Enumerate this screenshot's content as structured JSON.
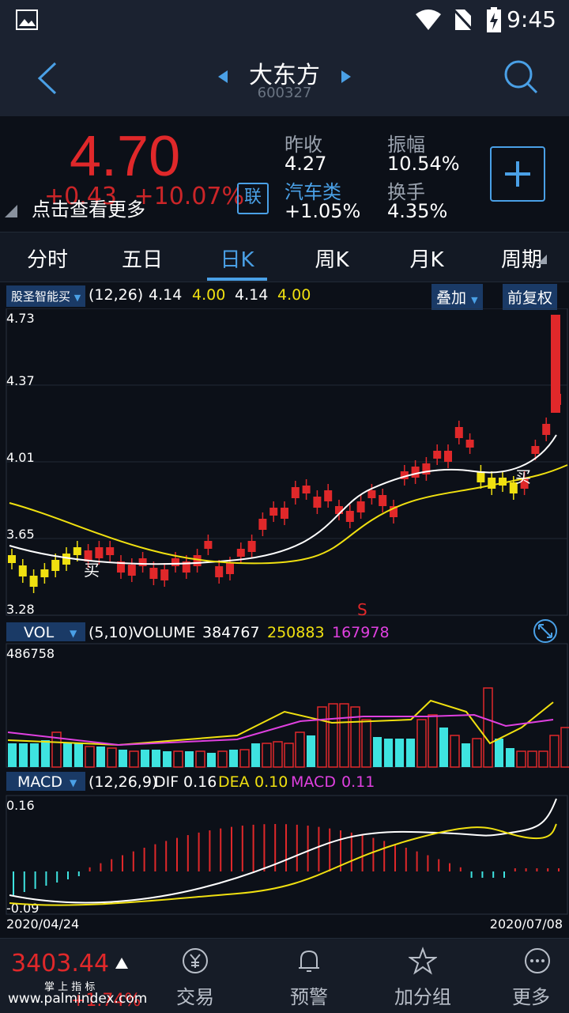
{
  "status": {
    "time": "9:45"
  },
  "header": {
    "name": "大东方",
    "code": "600327"
  },
  "quote": {
    "price": "4.70",
    "change": "+0.43",
    "change_pct": "+10.07%",
    "link_badge": "联",
    "hint": "点击查看更多",
    "stats": [
      {
        "label": "昨收",
        "value": "4.27"
      },
      {
        "label": "振幅",
        "value": "10.54%"
      },
      {
        "label": "汽车类",
        "value": "+1.05%"
      },
      {
        "label": "换手",
        "value": "4.35%"
      }
    ]
  },
  "tabs": [
    "分时",
    "五日",
    "日K",
    "周K",
    "月K",
    "周期"
  ],
  "active_tab": "日K",
  "kline": {
    "indicator": "股圣智能买",
    "params": "(12,26)",
    "v1": "4.14",
    "v2": "4.00",
    "v3": "4.14",
    "v4": "4.00",
    "overlay": "叠加",
    "adjust": "前复权",
    "y_ticks": [
      "4.73",
      "4.37",
      "4.01",
      "3.65",
      "3.28"
    ],
    "buy_label": "买",
    "sell_label": "S"
  },
  "vol": {
    "label": "VOL",
    "params": "(5,10)",
    "name": "VOLUME",
    "v": "384767",
    "ma5": "250883",
    "ma10": "167978",
    "max_tick": "486758"
  },
  "macd": {
    "label": "MACD",
    "params": "(12,26,9)",
    "dif_label": "DIF",
    "dif": "0.16",
    "dea_label": "DEA",
    "dea": "0.10",
    "macd_label": "MACD",
    "macd_val": "0.11",
    "top_tick": "0.16",
    "bottom_tick": "-0.09",
    "start_date": "2020/04/24",
    "end_date": "2020/07/08"
  },
  "bottom": {
    "index_value": "3403.44",
    "index_change": "+1.74%",
    "index_label": "掌 上 指 标",
    "watermark": "www.palmindex.com",
    "nav": [
      "交易",
      "预警",
      "加分组",
      "更多"
    ]
  },
  "colors": {
    "up": "#e0282a",
    "down": "#3ee3e0",
    "yellow": "#f0e010",
    "accent": "#4aa0e6"
  }
}
